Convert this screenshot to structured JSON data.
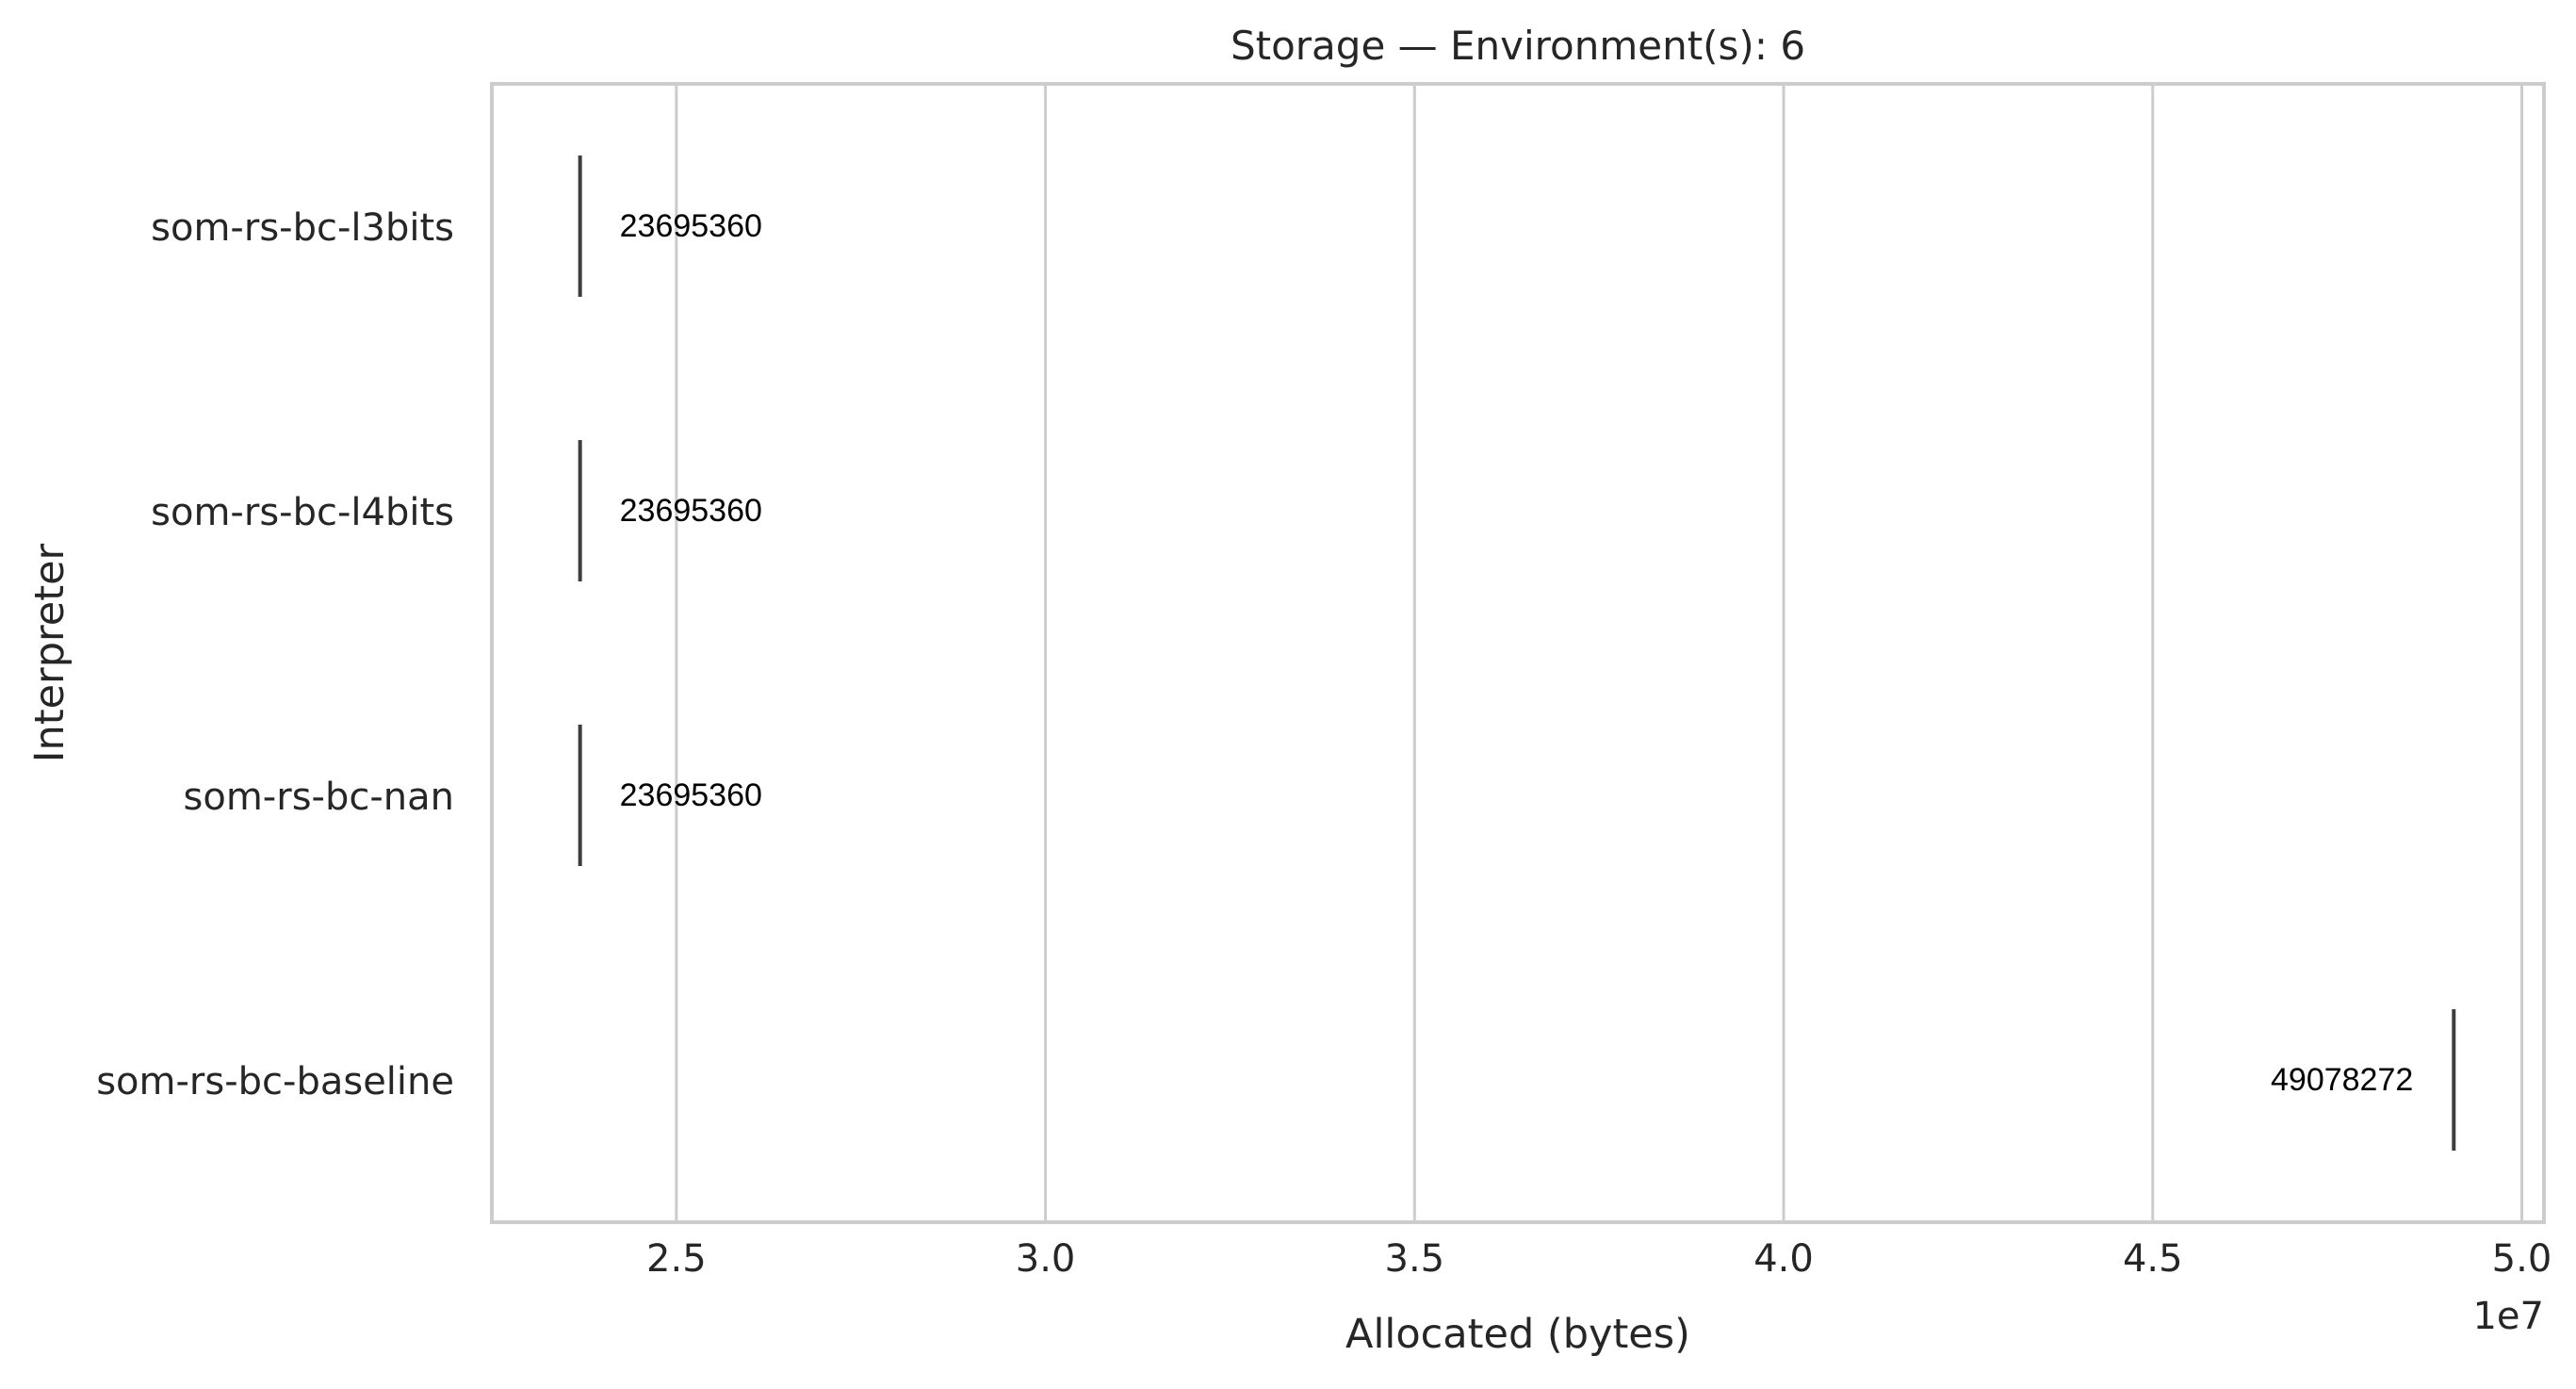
{
  "chart_data": {
    "type": "box",
    "orientation": "horizontal",
    "title": "Storage — Environment(s): 6",
    "xlabel": "Allocated (bytes)",
    "ylabel": "Interpreter",
    "x_offset_label": "1e7",
    "xlim": [
      22500000,
      50300000
    ],
    "x_ticks": [
      25000000,
      30000000,
      35000000,
      40000000,
      45000000,
      50000000
    ],
    "x_tick_labels": [
      "2.5",
      "3.0",
      "3.5",
      "4.0",
      "4.5",
      "5.0"
    ],
    "categories": [
      "som-rs-bc-l3bits",
      "som-rs-bc-l4bits",
      "som-rs-bc-nan",
      "som-rs-bc-baseline"
    ],
    "values": [
      23695360,
      23695360,
      23695360,
      49078272
    ],
    "value_labels": [
      "23695360",
      "23695360",
      "23695360",
      "49078272"
    ],
    "grid": "vertical",
    "colors": {
      "grid": "#cccccc",
      "spine": "#cccccc",
      "median": "#3d3d3d",
      "text": "#262626"
    }
  }
}
